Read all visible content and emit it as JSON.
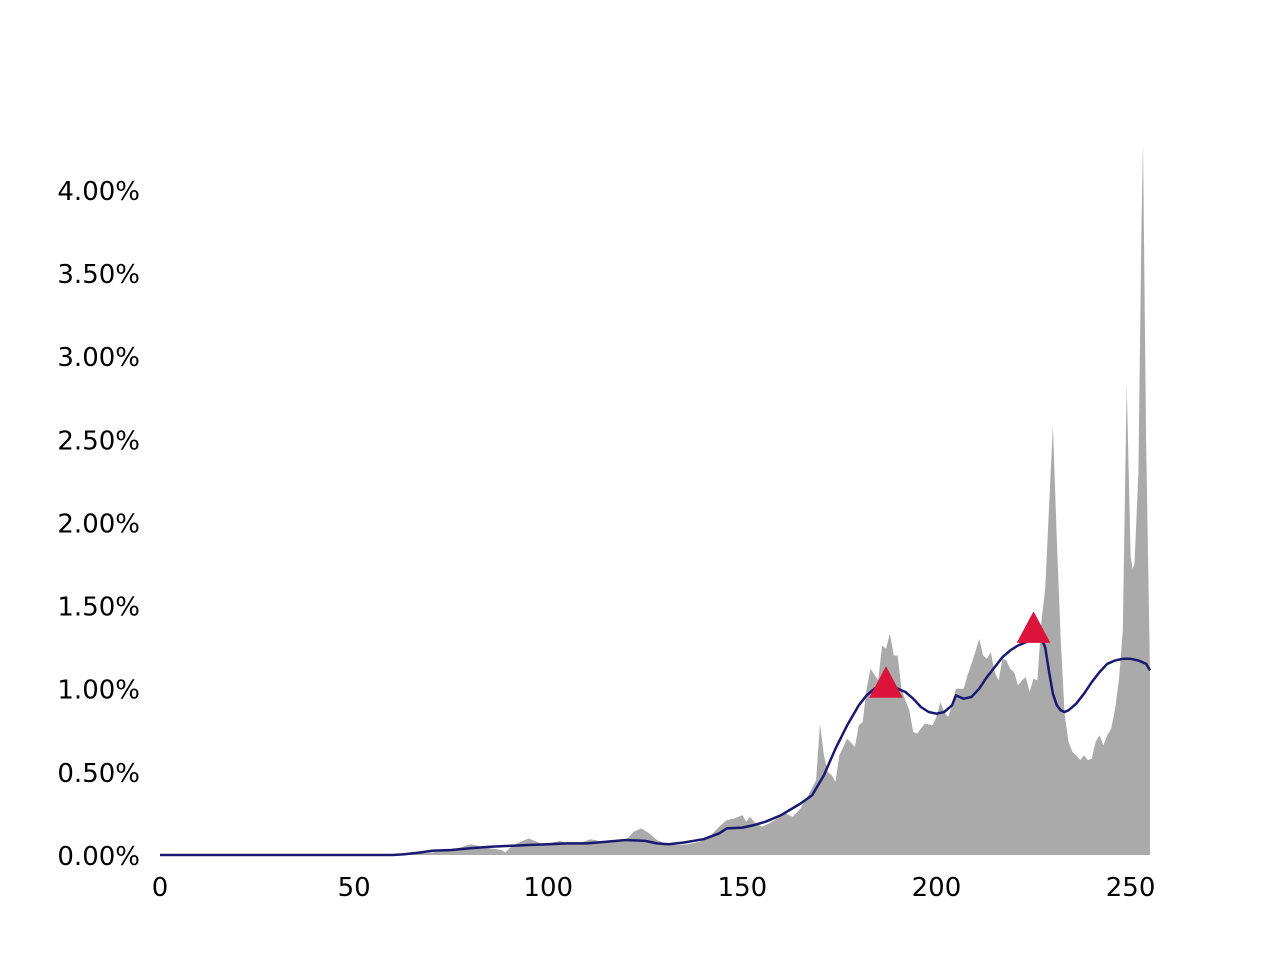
{
  "chart_data": {
    "type": "area",
    "title": "",
    "xlabel": "",
    "ylabel": "",
    "xlim": [
      0,
      255
    ],
    "ylim": [
      0,
      4.3
    ],
    "grid": false,
    "legend": "none",
    "x_ticks": [
      {
        "value": 0,
        "label": "0"
      },
      {
        "value": 50,
        "label": "50"
      },
      {
        "value": 100,
        "label": "100"
      },
      {
        "value": 150,
        "label": "150"
      },
      {
        "value": 200,
        "label": "200"
      },
      {
        "value": 250,
        "label": "250"
      }
    ],
    "y_ticks": [
      {
        "value": 0.0,
        "label": "0.00%"
      },
      {
        "value": 0.5,
        "label": "0.50%"
      },
      {
        "value": 1.0,
        "label": "1.00%"
      },
      {
        "value": 1.5,
        "label": "1.50%"
      },
      {
        "value": 2.0,
        "label": "2.00%"
      },
      {
        "value": 2.5,
        "label": "2.50%"
      },
      {
        "value": 3.0,
        "label": "3.00%"
      },
      {
        "value": 3.5,
        "label": "3.50%"
      },
      {
        "value": 4.0,
        "label": "4.00%"
      }
    ],
    "series": [
      {
        "kind": "area",
        "color": "#aaaaaa",
        "points": [
          [
            0,
            0
          ],
          [
            60,
            0
          ],
          [
            65,
            0.005
          ],
          [
            70,
            0.015
          ],
          [
            75,
            0.03
          ],
          [
            78,
            0.05
          ],
          [
            80,
            0.065
          ],
          [
            82,
            0.055
          ],
          [
            85,
            0.04
          ],
          [
            88,
            0.03
          ],
          [
            89,
            0.015
          ],
          [
            90,
            0.04
          ],
          [
            92,
            0.07
          ],
          [
            94,
            0.09
          ],
          [
            95,
            0.1
          ],
          [
            97,
            0.08
          ],
          [
            99,
            0.06
          ],
          [
            101,
            0.075
          ],
          [
            103,
            0.085
          ],
          [
            105,
            0.07
          ],
          [
            107,
            0.065
          ],
          [
            109,
            0.08
          ],
          [
            111,
            0.095
          ],
          [
            113,
            0.085
          ],
          [
            115,
            0.075
          ],
          [
            118,
            0.085
          ],
          [
            120,
            0.09
          ],
          [
            122,
            0.14
          ],
          [
            124,
            0.16
          ],
          [
            126,
            0.13
          ],
          [
            128,
            0.09
          ],
          [
            130,
            0.07
          ],
          [
            133,
            0.06
          ],
          [
            136,
            0.065
          ],
          [
            139,
            0.08
          ],
          [
            142,
            0.12
          ],
          [
            144,
            0.17
          ],
          [
            146,
            0.21
          ],
          [
            148,
            0.22
          ],
          [
            150,
            0.24
          ],
          [
            151,
            0.2
          ],
          [
            152,
            0.23
          ],
          [
            153,
            0.2
          ],
          [
            155,
            0.17
          ],
          [
            157,
            0.19
          ],
          [
            159,
            0.22
          ],
          [
            161,
            0.25
          ],
          [
            163,
            0.23
          ],
          [
            165,
            0.28
          ],
          [
            167,
            0.36
          ],
          [
            169,
            0.45
          ],
          [
            170,
            0.79
          ],
          [
            171,
            0.6
          ],
          [
            172,
            0.5
          ],
          [
            173,
            0.48
          ],
          [
            174,
            0.44
          ],
          [
            175,
            0.6
          ],
          [
            177,
            0.7
          ],
          [
            179,
            0.65
          ],
          [
            180,
            0.78
          ],
          [
            181,
            0.8
          ],
          [
            182,
            1.0
          ],
          [
            183,
            1.12
          ],
          [
            185,
            1.05
          ],
          [
            186,
            1.26
          ],
          [
            187,
            1.24
          ],
          [
            188,
            1.33
          ],
          [
            189,
            1.2
          ],
          [
            190,
            1.2
          ],
          [
            191,
            1.0
          ],
          [
            192,
            0.93
          ],
          [
            193,
            0.87
          ],
          [
            194,
            0.74
          ],
          [
            195,
            0.73
          ],
          [
            197,
            0.79
          ],
          [
            199,
            0.78
          ],
          [
            200,
            0.83
          ],
          [
            201,
            0.92
          ],
          [
            202,
            0.86
          ],
          [
            203,
            0.83
          ],
          [
            204,
            0.9
          ],
          [
            205,
            1.0
          ],
          [
            207,
            1.0
          ],
          [
            208,
            1.08
          ],
          [
            209,
            1.15
          ],
          [
            210,
            1.22
          ],
          [
            211,
            1.3
          ],
          [
            212,
            1.2
          ],
          [
            213,
            1.18
          ],
          [
            214,
            1.22
          ],
          [
            215,
            1.1
          ],
          [
            216,
            1.05
          ],
          [
            217,
            1.18
          ],
          [
            218,
            1.17
          ],
          [
            219,
            1.12
          ],
          [
            220,
            1.1
          ],
          [
            221,
            1.02
          ],
          [
            222,
            1.05
          ],
          [
            223,
            1.07
          ],
          [
            224,
            0.98
          ],
          [
            225,
            1.06
          ],
          [
            226,
            1.05
          ],
          [
            227,
            1.4
          ],
          [
            228,
            1.6
          ],
          [
            229,
            2.1
          ],
          [
            230,
            2.58
          ],
          [
            231,
            1.9
          ],
          [
            232,
            1.3
          ],
          [
            233,
            0.85
          ],
          [
            234,
            0.68
          ],
          [
            235,
            0.62
          ],
          [
            236,
            0.6
          ],
          [
            237,
            0.57
          ],
          [
            238,
            0.6
          ],
          [
            239,
            0.57
          ],
          [
            240,
            0.58
          ],
          [
            241,
            0.68
          ],
          [
            242,
            0.72
          ],
          [
            243,
            0.66
          ],
          [
            244,
            0.72
          ],
          [
            245,
            0.76
          ],
          [
            246,
            0.88
          ],
          [
            247,
            1.05
          ],
          [
            248,
            1.35
          ],
          [
            249,
            2.83
          ],
          [
            250,
            1.8
          ],
          [
            250.5,
            1.72
          ],
          [
            251,
            1.75
          ],
          [
            252,
            2.3
          ],
          [
            252.8,
            3.8
          ],
          [
            253.2,
            4.28
          ],
          [
            254,
            2.5
          ],
          [
            255,
            1.1
          ]
        ]
      },
      {
        "kind": "line",
        "color": "#191970",
        "points": [
          [
            0,
            0
          ],
          [
            60,
            0
          ],
          [
            63,
            0.005
          ],
          [
            67,
            0.015
          ],
          [
            70,
            0.025
          ],
          [
            75,
            0.03
          ],
          [
            80,
            0.04
          ],
          [
            85,
            0.05
          ],
          [
            90,
            0.055
          ],
          [
            95,
            0.06
          ],
          [
            100,
            0.065
          ],
          [
            105,
            0.07
          ],
          [
            110,
            0.07
          ],
          [
            115,
            0.08
          ],
          [
            120,
            0.09
          ],
          [
            125,
            0.085
          ],
          [
            128,
            0.07
          ],
          [
            131,
            0.065
          ],
          [
            135,
            0.075
          ],
          [
            140,
            0.095
          ],
          [
            144,
            0.13
          ],
          [
            146,
            0.16
          ],
          [
            150,
            0.165
          ],
          [
            153,
            0.18
          ],
          [
            156,
            0.2
          ],
          [
            160,
            0.24
          ],
          [
            165,
            0.31
          ],
          [
            168,
            0.36
          ],
          [
            171,
            0.48
          ],
          [
            174,
            0.64
          ],
          [
            177,
            0.78
          ],
          [
            180,
            0.9
          ],
          [
            182,
            0.96
          ],
          [
            184,
            1.0
          ],
          [
            186,
            1.03
          ],
          [
            188,
            1.02
          ],
          [
            190,
            1.0
          ],
          [
            192,
            0.98
          ],
          [
            194,
            0.94
          ],
          [
            196,
            0.89
          ],
          [
            198,
            0.86
          ],
          [
            200,
            0.85
          ],
          [
            202,
            0.86
          ],
          [
            204,
            0.9
          ],
          [
            205,
            0.96
          ],
          [
            207,
            0.94
          ],
          [
            209,
            0.95
          ],
          [
            211,
            1.0
          ],
          [
            213,
            1.07
          ],
          [
            215,
            1.13
          ],
          [
            217,
            1.19
          ],
          [
            219,
            1.23
          ],
          [
            221,
            1.26
          ],
          [
            223,
            1.28
          ],
          [
            225,
            1.3
          ],
          [
            227,
            1.3
          ],
          [
            228,
            1.25
          ],
          [
            229,
            1.1
          ],
          [
            230,
            0.97
          ],
          [
            231,
            0.9
          ],
          [
            232,
            0.87
          ],
          [
            233,
            0.86
          ],
          [
            234,
            0.87
          ],
          [
            236,
            0.91
          ],
          [
            238,
            0.97
          ],
          [
            240,
            1.04
          ],
          [
            242,
            1.1
          ],
          [
            244,
            1.15
          ],
          [
            246,
            1.17
          ],
          [
            248,
            1.18
          ],
          [
            250,
            1.18
          ],
          [
            252,
            1.17
          ],
          [
            254,
            1.15
          ],
          [
            255,
            1.11
          ]
        ]
      }
    ],
    "markers": {
      "shape": "triangle-up",
      "color": "#dc143c",
      "points": [
        [
          187,
          1.03
        ],
        [
          225,
          1.36
        ]
      ]
    }
  }
}
